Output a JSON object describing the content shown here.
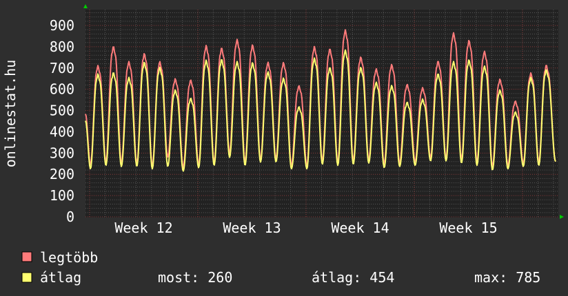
{
  "chart_data": {
    "type": "line",
    "ylabel": "onlinestat.hu",
    "ylim": [
      0,
      900
    ],
    "yticks": [
      "0",
      "100",
      "200",
      "300",
      "400",
      "500",
      "600",
      "700",
      "800",
      "900"
    ],
    "xtick_labels": [
      "Week 12",
      "Week 13",
      "Week 14",
      "Week 15"
    ],
    "grid": true,
    "legend_placement": "bottom-left",
    "series": [
      {
        "name": "legtöbb",
        "color": "#ff7b7b",
        "daily_peaks": [
          712,
          803,
          731,
          769,
          731,
          650,
          645,
          806,
          796,
          835,
          810,
          728,
          726,
          618,
          801,
          792,
          880,
          753,
          697,
          717,
          624,
          608,
          734,
          866,
          831,
          780,
          648,
          546,
          677,
          715
        ],
        "daily_troughs": [
          245,
          258,
          252,
          250,
          240,
          280,
          232,
          245,
          255,
          300,
          255,
          270,
          272,
          240,
          240,
          262,
          255,
          262,
          268,
          248,
          252,
          258,
          278,
          275,
          268,
          258,
          236,
          242,
          252,
          258
        ]
      },
      {
        "name": "átlag",
        "color": "#ffff70",
        "daily_peaks": [
          672,
          680,
          656,
          728,
          704,
          597,
          559,
          737,
          742,
          731,
          726,
          683,
          653,
          519,
          747,
          704,
          785,
          704,
          634,
          618,
          540,
          554,
          674,
          731,
          739,
          710,
          597,
          495,
          656,
          694
        ],
        "daily_troughs": [
          226,
          242,
          237,
          237,
          226,
          237,
          215,
          231,
          242,
          280,
          242,
          258,
          258,
          226,
          226,
          247,
          242,
          247,
          253,
          231,
          237,
          242,
          263,
          263,
          253,
          242,
          220,
          226,
          237,
          242
        ]
      }
    ],
    "start_values": {
      "legtöbb": 484,
      "átlag": 452
    },
    "end_value": 260
  },
  "legend": {
    "items": [
      {
        "label": "legtöbb",
        "color": "#ff7b7b"
      },
      {
        "label": "átlag",
        "color": "#ffff70"
      }
    ],
    "stats": {
      "most": "most: 260",
      "atlag": "átlag: 454",
      "max": "max: 785"
    }
  },
  "colors": {
    "background": "#2e2e2e",
    "plot_background": "#222222",
    "minor_grid": "#555555",
    "major_grid": "#8a3a3a",
    "axis_arrow": "#00cc00"
  }
}
